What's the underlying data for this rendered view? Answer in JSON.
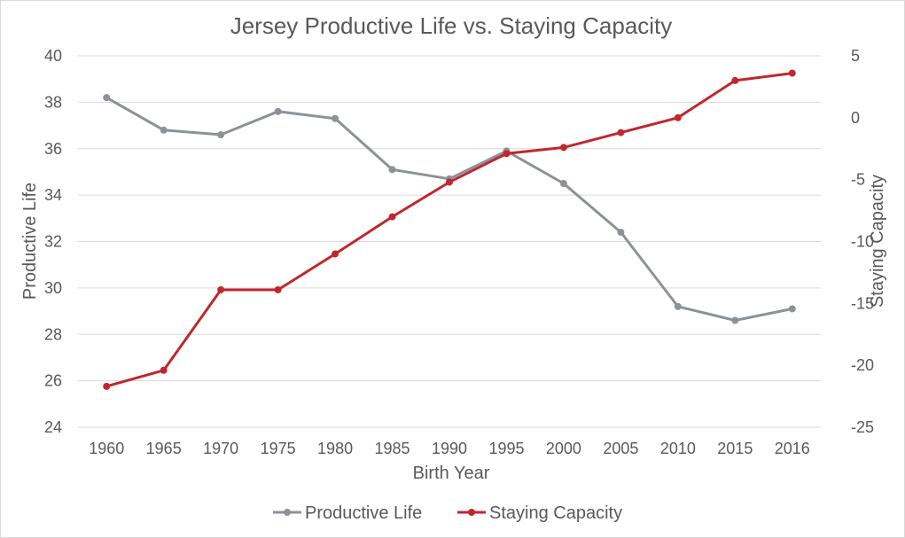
{
  "chart_data": {
    "type": "line",
    "title": "Jersey Productive Life vs. Staying Capacity",
    "xlabel": "Birth Year",
    "ylabel": "Productive Life",
    "y2label": "Staying Capacity",
    "categories": [
      "1960",
      "1965",
      "1970",
      "1975",
      "1980",
      "1985",
      "1990",
      "1995",
      "2000",
      "2005",
      "2010",
      "2015",
      "2016"
    ],
    "ylim": [
      24,
      40
    ],
    "yticks": [
      24,
      26,
      28,
      30,
      32,
      34,
      36,
      38,
      40
    ],
    "y2lim": [
      -25,
      5
    ],
    "y2ticks": [
      -25,
      -20,
      -15,
      -10,
      -5,
      0,
      5
    ],
    "grid": true,
    "legend_position": "bottom",
    "series": [
      {
        "name": "Productive Life",
        "axis": "left",
        "color": "#8c9297",
        "values": [
          38.2,
          36.8,
          36.6,
          37.6,
          37.3,
          35.1,
          34.7,
          35.9,
          34.5,
          32.4,
          29.2,
          28.6,
          29.1
        ]
      },
      {
        "name": "Staying Capacity",
        "axis": "right",
        "color": "#c0272d",
        "values": [
          -21.7,
          -20.4,
          -13.9,
          -13.9,
          -11.0,
          -8.0,
          -5.2,
          -2.9,
          -2.4,
          -1.2,
          0.0,
          3.0,
          3.6
        ]
      }
    ]
  }
}
